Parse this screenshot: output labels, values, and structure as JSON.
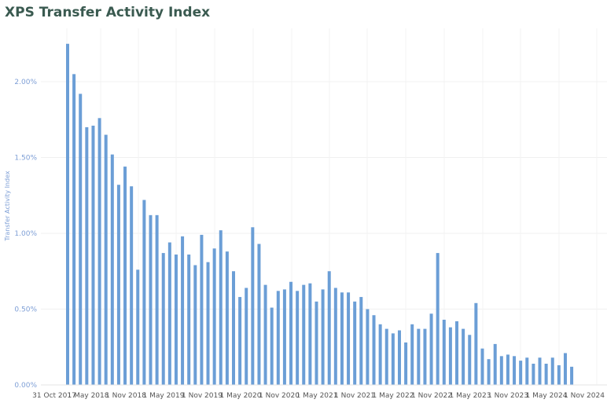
{
  "chart_data": {
    "type": "bar",
    "title": "XPS Transfer Activity Index",
    "ylabel": "Transfer Activity Index",
    "xlabel": "",
    "ylim": [
      0,
      2.3
    ],
    "yticks": [
      {
        "value": 0,
        "label": "0.00%"
      },
      {
        "value": 0.5,
        "label": "0.50%"
      },
      {
        "value": 1.0,
        "label": "1.00%"
      },
      {
        "value": 1.5,
        "label": "1.50%"
      },
      {
        "value": 2.0,
        "label": "2.00%"
      }
    ],
    "xticks": [
      "31 Oct 2017",
      "1 May 2018",
      "1 Nov 2018",
      "1 May 2019",
      "1 Nov 2019",
      "1 May 2020",
      "1 Nov 2020",
      "1 May 2021",
      "1 Nov 2021",
      "1 May 2022",
      "1 Nov 2022",
      "1 May 2023",
      "1 Nov 2023",
      "1 May 2024",
      "1 Nov 2024"
    ],
    "bar_color": "#6b9ed6",
    "grid": true,
    "values": [
      2.25,
      2.05,
      1.92,
      1.7,
      1.71,
      1.76,
      1.65,
      1.52,
      1.32,
      1.44,
      1.31,
      0.76,
      1.22,
      1.12,
      1.12,
      0.87,
      0.94,
      0.86,
      0.98,
      0.86,
      0.79,
      0.99,
      0.81,
      0.9,
      1.02,
      0.88,
      0.75,
      0.58,
      0.64,
      1.04,
      0.93,
      0.66,
      0.51,
      0.62,
      0.63,
      0.68,
      0.62,
      0.66,
      0.67,
      0.55,
      0.63,
      0.75,
      0.64,
      0.61,
      0.61,
      0.55,
      0.58,
      0.5,
      0.46,
      0.4,
      0.37,
      0.34,
      0.36,
      0.28,
      0.4,
      0.37,
      0.37,
      0.47,
      0.87,
      0.43,
      0.38,
      0.42,
      0.37,
      0.33,
      0.54,
      0.24,
      0.17,
      0.27,
      0.19,
      0.2,
      0.19,
      0.16,
      0.18,
      0.14,
      0.18,
      0.14,
      0.18,
      0.13,
      0.21,
      0.12
    ]
  }
}
